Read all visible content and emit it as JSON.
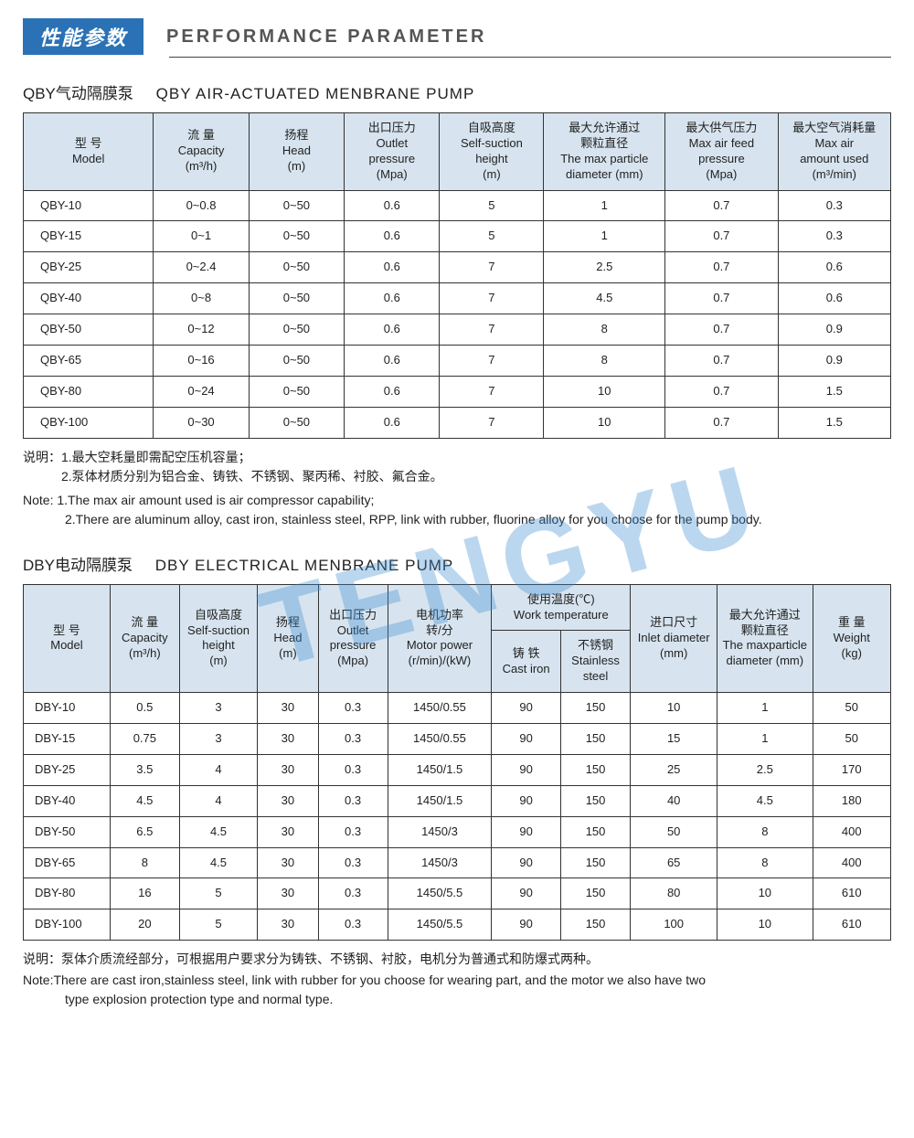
{
  "watermark": "TENGYU",
  "header": {
    "badge_zh": "性能参数",
    "title_en": "PERFORMANCE PARAMETER"
  },
  "qby": {
    "title_zh": "QBY气动隔膜泵",
    "title_en": "QBY AIR-ACTUATED MENBRANE PUMP",
    "columns": [
      "型 号\nModel",
      "流 量\nCapacity\n(m³/h)",
      "扬程\nHead\n(m)",
      "出口压力\nOutlet\npressure\n(Mpa)",
      "自吸高度\nSelf-suction\nheight\n(m)",
      "最大允许通过\n颗粒直径\nThe max particle\ndiameter (mm)",
      "最大供气压力\nMax air feed\npressure\n(Mpa)",
      "最大空气消耗量\nMax air\namount used\n(m³/min)"
    ],
    "rows": [
      [
        "QBY-10",
        "0~0.8",
        "0~50",
        "0.6",
        "5",
        "1",
        "0.7",
        "0.3"
      ],
      [
        "QBY-15",
        "0~1",
        "0~50",
        "0.6",
        "5",
        "1",
        "0.7",
        "0.3"
      ],
      [
        "QBY-25",
        "0~2.4",
        "0~50",
        "0.6",
        "7",
        "2.5",
        "0.7",
        "0.6"
      ],
      [
        "QBY-40",
        "0~8",
        "0~50",
        "0.6",
        "7",
        "4.5",
        "0.7",
        "0.6"
      ],
      [
        "QBY-50",
        "0~12",
        "0~50",
        "0.6",
        "7",
        "8",
        "0.7",
        "0.9"
      ],
      [
        "QBY-65",
        "0~16",
        "0~50",
        "0.6",
        "7",
        "8",
        "0.7",
        "0.9"
      ],
      [
        "QBY-80",
        "0~24",
        "0~50",
        "0.6",
        "7",
        "10",
        "0.7",
        "1.5"
      ],
      [
        "QBY-100",
        "0~30",
        "0~50",
        "0.6",
        "7",
        "10",
        "0.7",
        "1.5"
      ]
    ],
    "note_zh_1": "说明：1.最大空耗量即需配空压机容量；",
    "note_zh_2": "2.泵体材质分别为铝合金、铸铁、不锈钢、聚丙稀、衬胶、氟合金。",
    "note_en_1": "Note: 1.The max air amount used is air compressor capability;",
    "note_en_2": "2.There are aluminum alloy, cast iron, stainless steel, RPP, link with rubber, fluorine alloy for you choose for the pump body."
  },
  "dby": {
    "title_zh": "DBY电动隔膜泵",
    "title_en": "DBY ELECTRICAL MENBRANE PUMP",
    "header_row1": [
      "型 号\nModel",
      "流 量\nCapacity\n(m³/h)",
      "自吸高度\nSelf-suction\nheight\n(m)",
      "扬程\nHead\n(m)",
      "出口压力\nOutlet\npressure\n(Mpa)",
      "电机功率\n转/分\nMotor power\n(r/min)/(kW)",
      "使用温度(℃)\nWork temperature",
      "进口尺寸\nInlet diameter\n(mm)",
      "最大允许通过\n颗粒直径\nThe maxparticle\ndiameter (mm)",
      "重 量\nWeight\n(kg)"
    ],
    "header_row2": [
      "铸 铁\nCast iron",
      "不锈钢\nStainless\nsteel"
    ],
    "rows": [
      [
        "DBY-10",
        "0.5",
        "3",
        "30",
        "0.3",
        "1450/0.55",
        "90",
        "150",
        "10",
        "1",
        "50"
      ],
      [
        "DBY-15",
        "0.75",
        "3",
        "30",
        "0.3",
        "1450/0.55",
        "90",
        "150",
        "15",
        "1",
        "50"
      ],
      [
        "DBY-25",
        "3.5",
        "4",
        "30",
        "0.3",
        "1450/1.5",
        "90",
        "150",
        "25",
        "2.5",
        "170"
      ],
      [
        "DBY-40",
        "4.5",
        "4",
        "30",
        "0.3",
        "1450/1.5",
        "90",
        "150",
        "40",
        "4.5",
        "180"
      ],
      [
        "DBY-50",
        "6.5",
        "4.5",
        "30",
        "0.3",
        "1450/3",
        "90",
        "150",
        "50",
        "8",
        "400"
      ],
      [
        "DBY-65",
        "8",
        "4.5",
        "30",
        "0.3",
        "1450/3",
        "90",
        "150",
        "65",
        "8",
        "400"
      ],
      [
        "DBY-80",
        "16",
        "5",
        "30",
        "0.3",
        "1450/5.5",
        "90",
        "150",
        "80",
        "10",
        "610"
      ],
      [
        "DBY-100",
        "20",
        "5",
        "30",
        "0.3",
        "1450/5.5",
        "90",
        "150",
        "100",
        "10",
        "610"
      ]
    ],
    "note_zh": "说明：泵体介质流经部分，可根据用户要求分为铸铁、不锈钢、衬胶，电机分为普通式和防爆式两种。",
    "note_en_1": "Note:There are cast iron,stainless steel, link with rubber for you choose for wearing part, and the motor we also have two",
    "note_en_2": "type explosion protection type and normal type."
  }
}
